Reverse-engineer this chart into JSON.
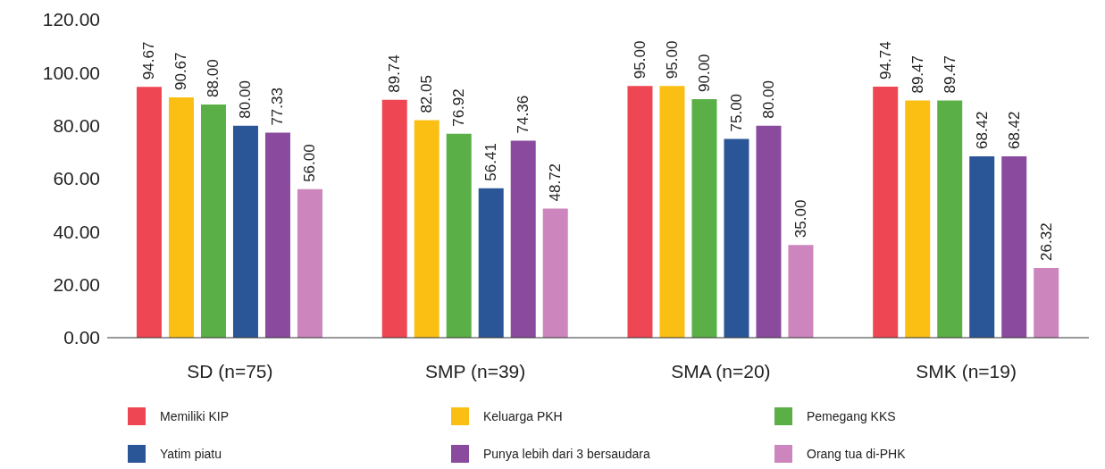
{
  "chart_data": {
    "type": "bar",
    "categories": [
      "SD (n=75)",
      "SMP (n=39)",
      "SMA (n=20)",
      "SMK (n=19)"
    ],
    "series": [
      {
        "name": "Memiliki KIP",
        "color": "#ef4653",
        "values": [
          94.67,
          89.74,
          95.0,
          94.74
        ],
        "value_labels": [
          "94.67",
          "89.74",
          "95.00",
          "94.74"
        ]
      },
      {
        "name": "Keluarga PKH",
        "color": "#fbbf14",
        "values": [
          90.67,
          82.05,
          95.0,
          89.47
        ],
        "value_labels": [
          "90.67",
          "82.05",
          "95.00",
          "89.47"
        ]
      },
      {
        "name": "Pemegang KKS",
        "color": "#5aaf46",
        "values": [
          88.0,
          76.92,
          90.0,
          89.47
        ],
        "value_labels": [
          "88.00",
          "76.92",
          "90.00",
          "89.47"
        ]
      },
      {
        "name": "Yatim piatu",
        "color": "#2a5597",
        "values": [
          80.0,
          56.41,
          75.0,
          68.42
        ],
        "value_labels": [
          "80.00",
          "56.41",
          "75.00",
          "68.42"
        ]
      },
      {
        "name": "Punya lebih dari 3 bersaudara",
        "color": "#8a4a9e",
        "values": [
          77.33,
          74.36,
          80.0,
          68.42
        ],
        "value_labels": [
          "77.33",
          "74.36",
          "80.00",
          "68.42"
        ]
      },
      {
        "name": "Orang tua di-PHK",
        "color": "#cc85bd",
        "values": [
          56.0,
          48.72,
          35.0,
          26.32
        ],
        "value_labels": [
          "56.00",
          "48.72",
          "35.00",
          "26.32"
        ]
      }
    ],
    "ylim": [
      0,
      120
    ],
    "yticks": [
      {
        "value": 0,
        "label": "0.00"
      },
      {
        "value": 20,
        "label": "20.00"
      },
      {
        "value": 40,
        "label": "40.00"
      },
      {
        "value": 60,
        "label": "60.00"
      },
      {
        "value": 80,
        "label": "80.00"
      },
      {
        "value": 100,
        "label": "100.00"
      },
      {
        "value": 120,
        "label": "120.00"
      }
    ],
    "grid": false,
    "legend": "bottom"
  }
}
